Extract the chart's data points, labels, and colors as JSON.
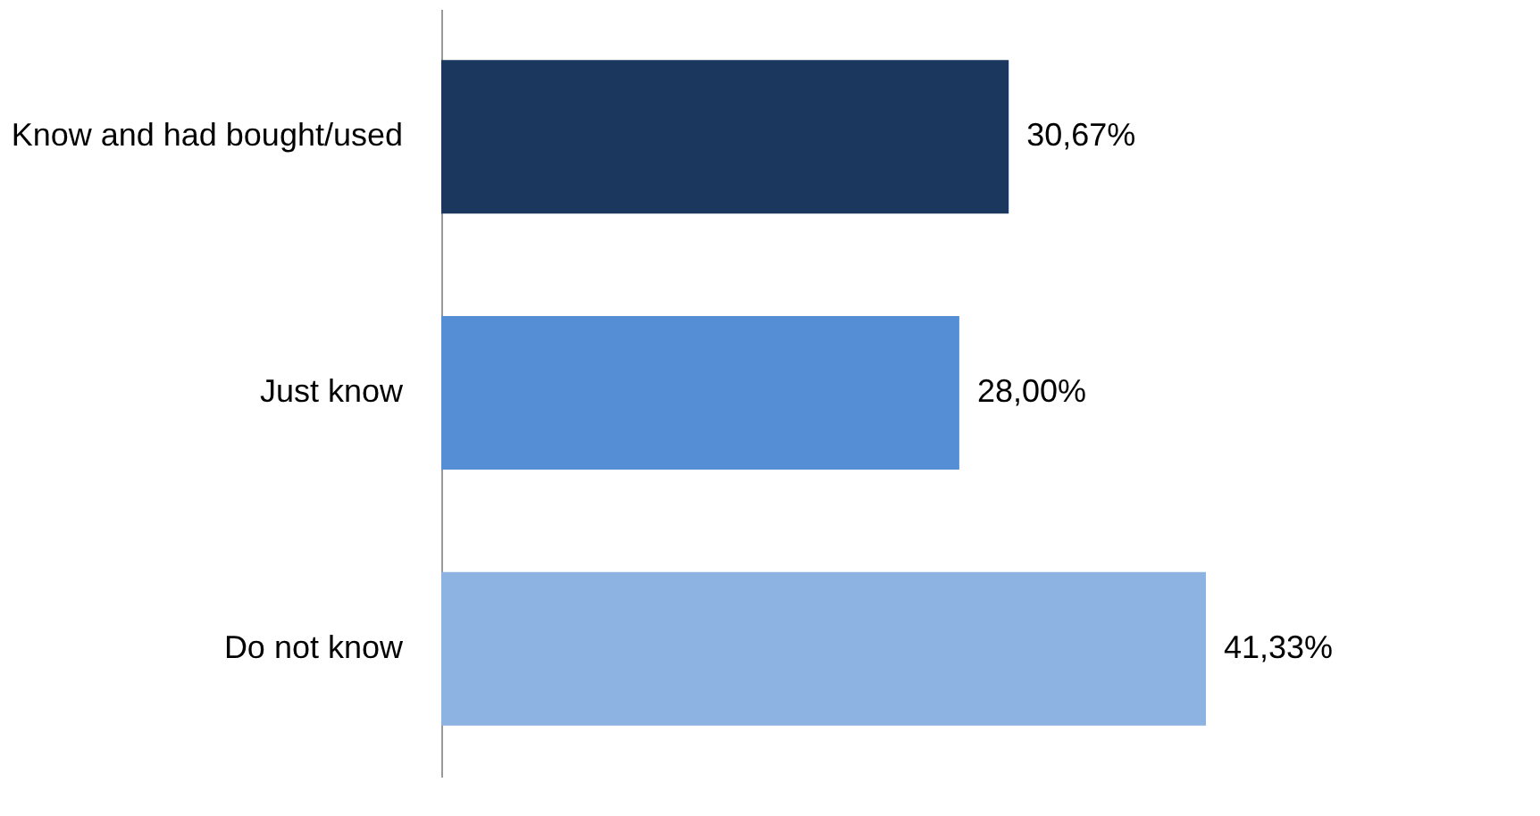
{
  "chart_data": {
    "type": "bar",
    "orientation": "horizontal",
    "categories": [
      "Know and had bought/used",
      "Just know",
      "Do not know"
    ],
    "values": [
      30.67,
      28.0,
      41.33
    ],
    "colors": [
      "#1b375e",
      "#558ed5",
      "#8db3e2"
    ],
    "value_labels": [
      "30,67%",
      "28,00%",
      "41,33%"
    ],
    "tick_labels": "y"
  }
}
